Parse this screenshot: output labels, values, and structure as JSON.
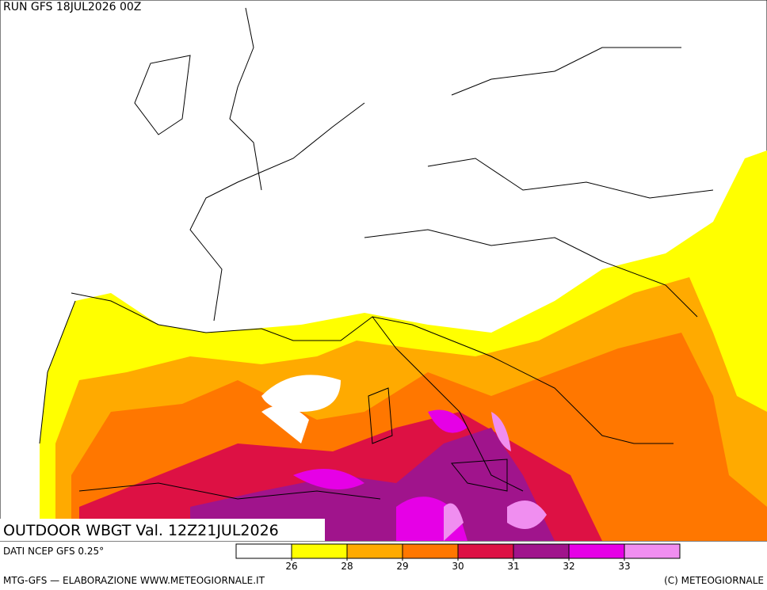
{
  "header": {
    "run": "RUN GFS 18JUL2026 00Z"
  },
  "map": {
    "title": "OUTDOOR WBGT Val. 12Z21JUL2026"
  },
  "legend": {
    "source": "DATI NCEP GFS 0.25°",
    "levels": [
      26,
      28,
      29,
      30,
      31,
      32,
      33
    ],
    "colors": [
      "#ffffff",
      "#ffff00",
      "#ffaa00",
      "#ff7700",
      "#dd1144",
      "#a0148c",
      "#e600e6",
      "#f08ef0"
    ]
  },
  "footer": {
    "left": "MTG-GFS — ELABORAZIONE WWW.METEOGIORNALE.IT",
    "right": "(C) METEOGIORNALE"
  }
}
